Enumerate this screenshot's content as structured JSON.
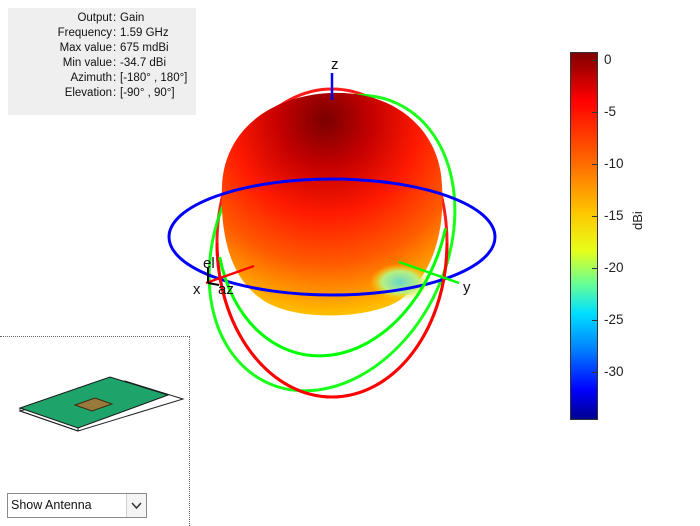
{
  "info": {
    "output": {
      "label": "Output",
      "value": "Gain"
    },
    "frequency": {
      "label": "Frequency",
      "value": "1.59 GHz"
    },
    "max_value": {
      "label": "Max value",
      "value": "675 mdBi"
    },
    "min_value": {
      "label": "Min value",
      "value": "-34.7 dBi"
    },
    "azimuth": {
      "label": "Azimuth",
      "value": "[-180° , 180°]"
    },
    "elevation": {
      "label": "Elevation",
      "value": "[-90° , 90°]"
    }
  },
  "axes": {
    "z": "z",
    "x": "x",
    "y": "y",
    "el": "el",
    "az": "az"
  },
  "colorbar": {
    "unit": "dBi",
    "ticks": [
      "0",
      "-5",
      "-10",
      "-15",
      "-20",
      "-25",
      "-30"
    ],
    "colors": {
      "max": "#800000",
      "mid": "#ffc800",
      "min": "#00008f"
    }
  },
  "circle_colors": {
    "azimuth_plane": "#0000ff",
    "elevation_xz": "#ff0000",
    "elevation_yz": "#00ff00"
  },
  "preview": {
    "dropdown_value": "Show Antenna",
    "colors": {
      "ground": "#1ea36a",
      "patch": "#9a7a3a"
    }
  }
}
